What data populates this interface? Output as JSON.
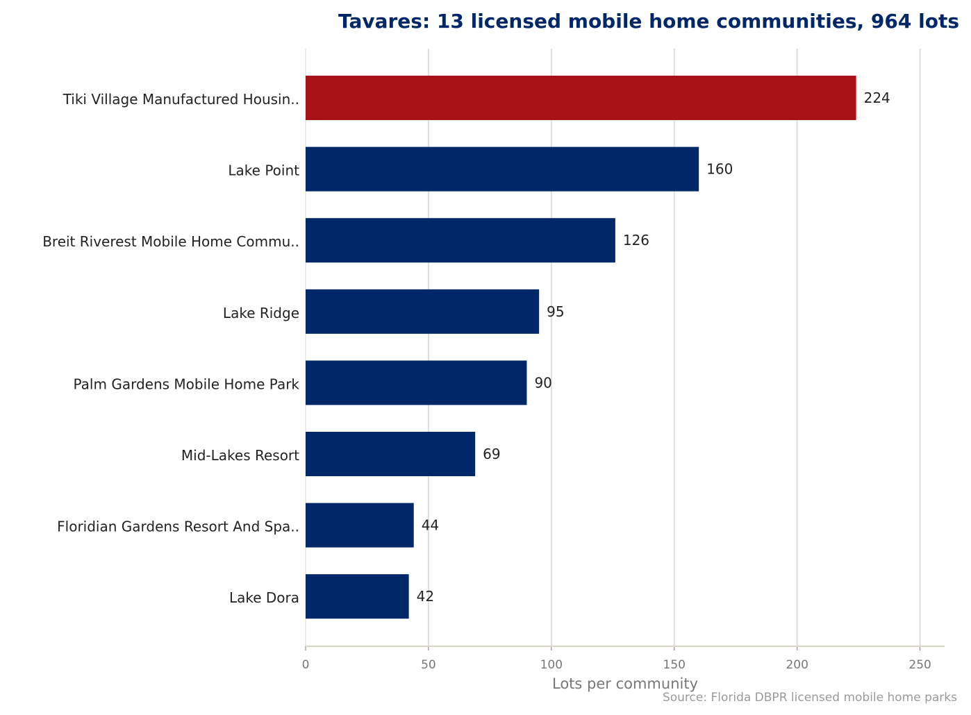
{
  "chart_data": {
    "type": "bar",
    "orientation": "horizontal",
    "title": "Tavares: 13 licensed mobile home communities, 964 lots",
    "xlabel": "Lots per community",
    "ylabel": "",
    "xlim": [
      0,
      260
    ],
    "xticks": [
      0,
      50,
      100,
      150,
      200,
      250
    ],
    "grid": true,
    "categories": [
      "Tiki Village Manufactured Housin..",
      "Lake Point",
      "Breit Riverest Mobile Home Commu..",
      "Lake Ridge",
      "Palm Gardens Mobile Home Park",
      "Mid-Lakes Resort",
      "Floridian Gardens Resort And Spa..",
      "Lake Dora"
    ],
    "values": [
      224,
      160,
      126,
      95,
      90,
      69,
      44,
      42
    ],
    "highlight_index": 0,
    "colors": {
      "highlight": "#a81116",
      "bar": "#002868"
    },
    "source": "Source: Florida DBPR licensed mobile home parks"
  }
}
